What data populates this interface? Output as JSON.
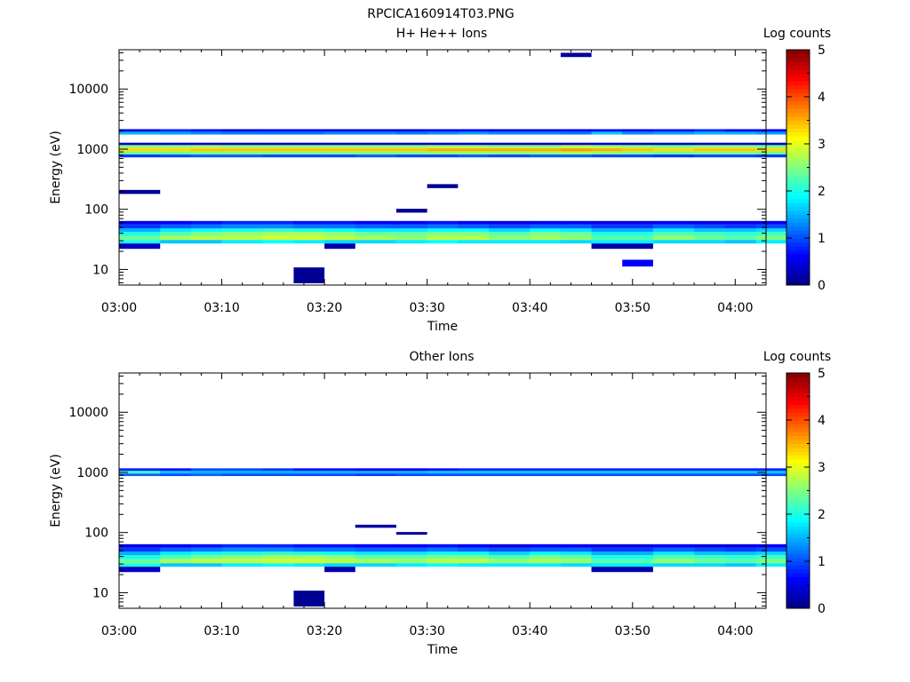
{
  "figure": {
    "title": "RPCICA160914T03.PNG"
  },
  "colorscale": {
    "name": "jet",
    "stops": [
      "#00007f",
      "#0000ff",
      "#007fff",
      "#00ffff",
      "#7fff7f",
      "#ffff00",
      "#ff7f00",
      "#ff0000",
      "#7f0000"
    ]
  },
  "chart_data": [
    {
      "type": "heatmap",
      "title": "H+ He++ Ions",
      "xlabel": "Time",
      "ylabel": "Energy (eV)",
      "yscale": "log",
      "xlim": [
        "03:00",
        "04:03"
      ],
      "ylim": [
        5.5,
        45000
      ],
      "xticks": [
        "03:00",
        "03:10",
        "03:20",
        "03:30",
        "03:40",
        "03:50",
        "04:00"
      ],
      "yticks": [
        "10",
        "100",
        "1000",
        "10000"
      ],
      "colorbar": {
        "label": "Log counts",
        "range": [
          0,
          5
        ],
        "ticks": [
          "0",
          "1",
          "2",
          "3",
          "4",
          "5"
        ]
      },
      "time_bins": [
        "03:00",
        "03:04",
        "03:07",
        "03:10",
        "03:14",
        "03:17",
        "03:20",
        "03:23",
        "03:27",
        "03:30",
        "03:33",
        "03:36",
        "03:40",
        "03:43",
        "03:46",
        "03:49",
        "03:52",
        "03:56",
        "03:59",
        "04:02"
      ],
      "bands": [
        {
          "e_low": 27,
          "e_high": 31,
          "values": [
            2.0,
            1.6,
            1.6,
            1.8,
            1.9,
            1.8,
            1.7,
            1.7,
            1.8,
            1.9,
            1.8,
            1.8,
            1.8,
            1.7,
            1.8,
            1.8,
            1.7,
            1.7,
            1.6,
            1.8
          ]
        },
        {
          "e_low": 31,
          "e_high": 36,
          "values": [
            2.4,
            2.7,
            2.8,
            2.8,
            2.9,
            2.9,
            2.8,
            2.7,
            2.6,
            2.8,
            2.8,
            2.6,
            2.7,
            2.6,
            2.3,
            2.3,
            2.6,
            2.4,
            2.3,
            2.5
          ]
        },
        {
          "e_low": 36,
          "e_high": 42,
          "values": [
            2.0,
            2.3,
            2.5,
            2.6,
            2.7,
            2.7,
            2.6,
            2.4,
            2.4,
            2.5,
            2.5,
            2.3,
            2.5,
            2.4,
            2.0,
            2.0,
            2.3,
            2.2,
            2.1,
            2.2
          ]
        },
        {
          "e_low": 42,
          "e_high": 48,
          "values": [
            1.5,
            1.8,
            1.9,
            2.0,
            2.1,
            2.0,
            1.9,
            1.8,
            1.8,
            1.9,
            1.9,
            1.7,
            1.9,
            1.8,
            1.5,
            1.5,
            1.8,
            1.6,
            1.6,
            1.7
          ]
        },
        {
          "e_low": 48,
          "e_high": 56,
          "values": [
            0.9,
            1.1,
            1.2,
            1.3,
            1.3,
            1.2,
            1.2,
            1.1,
            1.1,
            1.2,
            1.1,
            1.0,
            1.1,
            1.1,
            0.9,
            0.9,
            1.1,
            1.0,
            0.9,
            1.0
          ]
        },
        {
          "e_low": 56,
          "e_high": 64,
          "values": [
            0.5,
            0.6,
            0.7,
            0.8,
            0.8,
            0.7,
            0.7,
            0.6,
            0.6,
            0.7,
            0.6,
            0.5,
            0.6,
            0.6,
            0.5,
            0.5,
            0.6,
            0.5,
            0.5,
            0.6
          ]
        },
        {
          "e_low": 730,
          "e_high": 820,
          "values": [
            0.9,
            1.0,
            1.1,
            1.1,
            1.0,
            1.0,
            1.0,
            1.1,
            1.0,
            1.0,
            1.1,
            1.0,
            1.1,
            1.1,
            1.0,
            1.0,
            0.9,
            1.0,
            1.0,
            0.9
          ]
        },
        {
          "e_low": 820,
          "e_high": 920,
          "values": [
            2.4,
            2.4,
            2.5,
            2.5,
            2.5,
            2.5,
            2.5,
            2.5,
            2.5,
            2.6,
            2.6,
            2.6,
            2.6,
            2.7,
            2.6,
            2.5,
            2.4,
            2.5,
            2.5,
            2.4
          ]
        },
        {
          "e_low": 920,
          "e_high": 1040,
          "values": [
            3.3,
            3.3,
            3.4,
            3.4,
            3.4,
            3.4,
            3.4,
            3.4,
            3.4,
            3.5,
            3.5,
            3.5,
            3.5,
            3.6,
            3.5,
            3.4,
            3.3,
            3.4,
            3.4,
            3.3
          ]
        },
        {
          "e_low": 1040,
          "e_high": 1170,
          "values": [
            2.6,
            2.6,
            2.7,
            2.6,
            2.6,
            2.6,
            2.6,
            2.6,
            2.6,
            2.7,
            2.7,
            2.6,
            2.6,
            2.8,
            2.7,
            2.6,
            2.5,
            2.6,
            2.6,
            2.5
          ]
        },
        {
          "e_low": 1170,
          "e_high": 1280,
          "values": [
            0.4,
            0.5,
            0.5,
            0.4,
            0.4,
            0.4,
            0.4,
            0.4,
            0.4,
            0.5,
            0.5,
            0.4,
            0.4,
            0.5,
            0.5,
            0.4,
            0.4,
            0.4,
            0.4,
            0.4
          ]
        },
        {
          "e_low": 1750,
          "e_high": 1950,
          "values": [
            1.5,
            1.4,
            1.3,
            1.2,
            1.2,
            1.2,
            1.3,
            1.3,
            1.2,
            1.3,
            1.4,
            1.3,
            1.3,
            1.2,
            1.6,
            1.3,
            1.4,
            1.5,
            1.5,
            1.4
          ]
        },
        {
          "e_low": 1950,
          "e_high": 2150,
          "values": [
            0.5,
            0.8,
            0.7,
            0.5,
            0.6,
            0.6,
            0.5,
            0.5,
            0.5,
            0.6,
            0.6,
            0.5,
            0.5,
            0.6,
            0.7,
            0.6,
            0.7,
            0.8,
            0.6,
            0.6
          ]
        }
      ],
      "sparse_cells": [
        {
          "time_from": "03:17",
          "time_to": "03:20",
          "e_low": 5.9,
          "e_high": 10.8,
          "value": 0.1
        },
        {
          "time_from": "03:49",
          "time_to": "03:52",
          "e_low": 11.2,
          "e_high": 14.5,
          "value": 0.6
        },
        {
          "time_from": "03:00",
          "time_to": "03:04",
          "e_low": 22,
          "e_high": 27,
          "value": 0.3
        },
        {
          "time_from": "03:20",
          "time_to": "03:23",
          "e_low": 22,
          "e_high": 27,
          "value": 0.2
        },
        {
          "time_from": "03:46",
          "time_to": "03:52",
          "e_low": 22,
          "e_high": 27,
          "value": 0.2
        },
        {
          "time_from": "03:00",
          "time_to": "03:04",
          "e_low": 180,
          "e_high": 210,
          "value": 0.1
        },
        {
          "time_from": "03:30",
          "time_to": "03:33",
          "e_low": 225,
          "e_high": 262,
          "value": 0.1
        },
        {
          "time_from": "03:27",
          "time_to": "03:30",
          "e_low": 88,
          "e_high": 102,
          "value": 0.1
        },
        {
          "time_from": "03:43",
          "time_to": "03:46",
          "e_low": 34000,
          "e_high": 40000,
          "value": 0.1
        }
      ]
    },
    {
      "type": "heatmap",
      "title": "Other Ions",
      "xlabel": "Time",
      "ylabel": "Energy (eV)",
      "yscale": "log",
      "xlim": [
        "03:00",
        "04:03"
      ],
      "ylim": [
        5.5,
        45000
      ],
      "xticks": [
        "03:00",
        "03:10",
        "03:20",
        "03:30",
        "03:40",
        "03:50",
        "04:00"
      ],
      "yticks": [
        "10",
        "100",
        "1000",
        "10000"
      ],
      "colorbar": {
        "label": "Log counts",
        "range": [
          0,
          5
        ],
        "ticks": [
          "0",
          "1",
          "2",
          "3",
          "4",
          "5"
        ]
      },
      "time_bins": [
        "03:00",
        "03:04",
        "03:07",
        "03:10",
        "03:14",
        "03:17",
        "03:20",
        "03:23",
        "03:27",
        "03:30",
        "03:33",
        "03:36",
        "03:40",
        "03:43",
        "03:46",
        "03:49",
        "03:52",
        "03:56",
        "03:59",
        "04:02"
      ],
      "bands": [
        {
          "e_low": 27,
          "e_high": 31,
          "values": [
            2.0,
            1.6,
            1.6,
            1.8,
            1.9,
            1.8,
            1.7,
            1.7,
            1.8,
            1.9,
            1.8,
            1.8,
            1.8,
            1.7,
            1.8,
            1.8,
            1.7,
            1.7,
            1.6,
            1.8
          ]
        },
        {
          "e_low": 31,
          "e_high": 36,
          "values": [
            2.4,
            2.7,
            2.8,
            2.8,
            2.9,
            2.9,
            2.8,
            2.7,
            2.6,
            2.8,
            2.8,
            2.6,
            2.7,
            2.6,
            2.3,
            2.3,
            2.6,
            2.4,
            2.3,
            2.5
          ]
        },
        {
          "e_low": 36,
          "e_high": 42,
          "values": [
            2.0,
            2.3,
            2.5,
            2.6,
            2.7,
            2.7,
            2.6,
            2.4,
            2.4,
            2.5,
            2.5,
            2.3,
            2.5,
            2.4,
            2.0,
            2.0,
            2.3,
            2.2,
            2.1,
            2.2
          ]
        },
        {
          "e_low": 42,
          "e_high": 48,
          "values": [
            1.5,
            1.8,
            1.9,
            2.0,
            2.1,
            2.0,
            1.9,
            1.8,
            1.8,
            1.9,
            1.9,
            1.7,
            1.9,
            1.8,
            1.5,
            1.5,
            1.8,
            1.6,
            1.6,
            1.7
          ]
        },
        {
          "e_low": 48,
          "e_high": 56,
          "values": [
            0.9,
            1.1,
            1.2,
            1.3,
            1.3,
            1.2,
            1.2,
            1.1,
            1.1,
            1.2,
            1.1,
            1.0,
            1.1,
            1.1,
            0.9,
            0.9,
            1.1,
            1.0,
            0.9,
            1.0
          ]
        },
        {
          "e_low": 56,
          "e_high": 64,
          "values": [
            0.5,
            0.6,
            0.7,
            0.8,
            0.8,
            0.7,
            0.7,
            0.6,
            0.6,
            0.7,
            0.6,
            0.5,
            0.6,
            0.6,
            0.5,
            0.5,
            0.6,
            0.5,
            0.5,
            0.6
          ]
        },
        {
          "e_low": 870,
          "e_high": 960,
          "values": [
            1.1,
            1.0,
            1.1,
            1.0,
            1.0,
            1.0,
            1.0,
            0.9,
            1.0,
            1.0,
            1.0,
            1.0,
            1.0,
            1.0,
            1.0,
            1.0,
            1.0,
            1.0,
            1.0,
            1.0
          ]
        },
        {
          "e_low": 960,
          "e_high": 1060,
          "values": [
            2.2,
            1.6,
            1.5,
            1.5,
            1.5,
            1.5,
            1.5,
            1.5,
            1.5,
            1.6,
            1.6,
            1.6,
            1.6,
            1.6,
            1.6,
            1.6,
            1.6,
            1.6,
            1.6,
            1.6
          ]
        },
        {
          "e_low": 1060,
          "e_high": 1170,
          "values": [
            0.8,
            0.7,
            1.0,
            1.0,
            0.9,
            0.7,
            0.7,
            0.6,
            0.6,
            0.7,
            0.8,
            0.8,
            0.8,
            0.8,
            0.8,
            0.8,
            0.8,
            0.8,
            0.8,
            0.8
          ]
        }
      ],
      "sparse_cells": [
        {
          "time_from": "03:17",
          "time_to": "03:20",
          "e_low": 5.9,
          "e_high": 10.8,
          "value": 0.1
        },
        {
          "time_from": "03:00",
          "time_to": "03:04",
          "e_low": 22,
          "e_high": 27,
          "value": 0.3
        },
        {
          "time_from": "03:20",
          "time_to": "03:23",
          "e_low": 22,
          "e_high": 27,
          "value": 0.2
        },
        {
          "time_from": "03:46",
          "time_to": "03:52",
          "e_low": 22,
          "e_high": 27,
          "value": 0.2
        },
        {
          "time_from": "03:23",
          "time_to": "03:27",
          "e_low": 120,
          "e_high": 135,
          "value": 0.2
        },
        {
          "time_from": "03:27",
          "time_to": "03:30",
          "e_low": 92,
          "e_high": 102,
          "value": 0.1
        }
      ]
    }
  ]
}
